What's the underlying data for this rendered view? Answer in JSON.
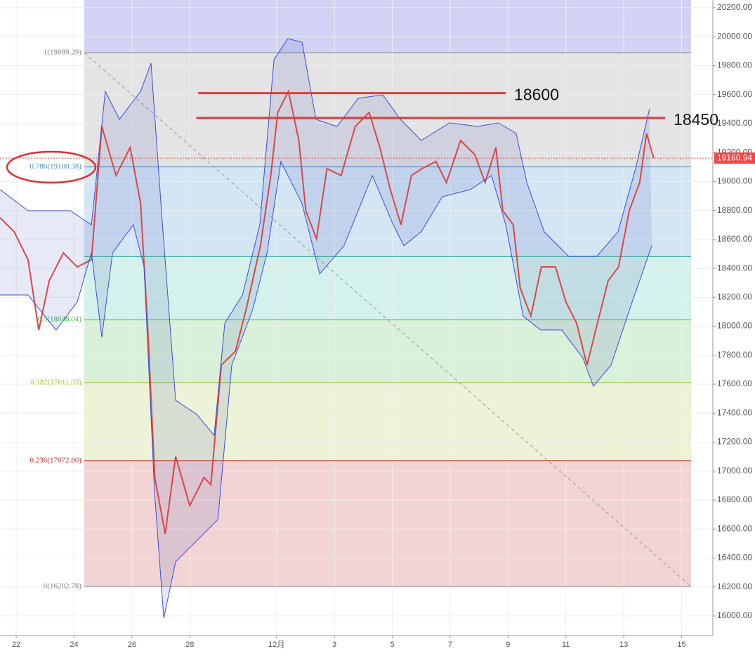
{
  "chart_data": {
    "type": "line",
    "xlim": [
      21.44,
      46.08
    ],
    "ylim": [
      15864,
      20253
    ],
    "xticks": [
      22,
      24,
      26,
      28,
      {
        "value": 31,
        "label": "12月"
      },
      {
        "value": 33,
        "label": "3"
      },
      {
        "value": 35,
        "label": "5"
      },
      {
        "value": 37,
        "label": "7"
      },
      {
        "value": 39,
        "label": "9"
      },
      {
        "value": 41,
        "label": "11"
      },
      {
        "value": 43,
        "label": "13"
      },
      {
        "value": 45,
        "label": "15"
      }
    ],
    "yticks": [
      {
        "value": 16000,
        "label": "16000.00"
      },
      {
        "value": 16200,
        "label": "16200.00"
      },
      {
        "value": 16400,
        "label": "16400.00"
      },
      {
        "value": 16600,
        "label": "16600.00"
      },
      {
        "value": 16800,
        "label": "16800.00"
      },
      {
        "value": 17000,
        "label": "17000.00"
      },
      {
        "value": 17200,
        "label": "17200.00"
      },
      {
        "value": 17400,
        "label": "17400.00"
      },
      {
        "value": 17600,
        "label": "17600.00"
      },
      {
        "value": 17800,
        "label": "17800.00"
      },
      {
        "value": 18000,
        "label": "18000.00"
      },
      {
        "value": 18200,
        "label": "18200.00"
      },
      {
        "value": 18400,
        "label": "18400.00"
      },
      {
        "value": 18600,
        "label": "18600.00"
      },
      {
        "value": 18800,
        "label": "18800.00"
      },
      {
        "value": 19000,
        "label": "19000.00"
      },
      {
        "value": 19200,
        "label": "19200.00"
      },
      {
        "value": 19400,
        "label": "19400.00"
      },
      {
        "value": 19600,
        "label": "19600.00"
      },
      {
        "value": 19800,
        "label": "19800.00"
      },
      {
        "value": 20000,
        "label": "20000.00"
      },
      {
        "value": 20200,
        "label": "20200.00"
      }
    ],
    "grid": true,
    "series": [
      {
        "color": "#d94848",
        "x": [
          21.44,
          21.93,
          22.41,
          22.78,
          23.14,
          23.63,
          24.11,
          24.6,
          24.96,
          25.45,
          25.94,
          26.3,
          26.55,
          26.79,
          27.15,
          27.51,
          28.0,
          28.49,
          28.73,
          29.09,
          29.58,
          29.95,
          30.44,
          30.8,
          31.04,
          31.41,
          31.77,
          32.01,
          32.38,
          32.74,
          33.23,
          33.72,
          34.2,
          34.57,
          34.93,
          35.3,
          35.66,
          36.03,
          36.51,
          36.87,
          37.36,
          37.85,
          38.21,
          38.58,
          38.82,
          39.18,
          39.42,
          39.79,
          40.15,
          40.64,
          41.0,
          41.37,
          41.73,
          42.09,
          42.46,
          42.82,
          43.19,
          43.55,
          43.79,
          44.03
        ],
        "values": [
          18750,
          18653,
          18459,
          17974,
          18314,
          18507,
          18410,
          18459,
          19380,
          19041,
          19235,
          18847,
          17974,
          16956,
          16568,
          17101,
          16762,
          16956,
          16907,
          17732,
          17828,
          18119,
          18556,
          19041,
          19477,
          19623,
          19283,
          18798,
          18604,
          19089,
          19041,
          19380,
          19477,
          19235,
          18944,
          18701,
          19041,
          19089,
          19138,
          18992,
          19283,
          19186,
          18992,
          19235,
          18798,
          18701,
          18265,
          18071,
          18410,
          18410,
          18168,
          18022,
          17732,
          18022,
          18314,
          18410,
          18798,
          18992,
          19332,
          19162
        ]
      },
      {
        "color": "#3b4fd8",
        "x": [
          21.44,
          22.41,
          22.9,
          23.87,
          24.6,
          25.08,
          25.57,
          26.3,
          26.66,
          27.02,
          27.51,
          28.24,
          28.84,
          29.21,
          29.82,
          30.42,
          30.91,
          31.39,
          31.88,
          32.36,
          33.09,
          33.82,
          34.67,
          35.28,
          36.0,
          36.98,
          37.95,
          38.67,
          39.28,
          39.65,
          40.25,
          41.1,
          42.07,
          42.8,
          43.41,
          43.89
        ],
        "values": [
          18944,
          18798,
          18798,
          18798,
          18701,
          19623,
          19429,
          19623,
          19817,
          18798,
          17489,
          17392,
          17247,
          18022,
          18216,
          18701,
          19841,
          19986,
          19962,
          19429,
          19380,
          19574,
          19598,
          19429,
          19283,
          19405,
          19380,
          19405,
          19332,
          18992,
          18653,
          18483,
          18483,
          18653,
          19089,
          19502
        ]
      },
      {
        "color": "#3b4fd8",
        "x": [
          21.44,
          22.41,
          23.38,
          24.11,
          24.6,
          24.96,
          25.33,
          26.05,
          26.42,
          26.78,
          27.1,
          27.51,
          28.24,
          28.97,
          29.45,
          30.18,
          30.67,
          31.15,
          31.88,
          32.49,
          33.33,
          34.31,
          35.03,
          35.4,
          36.0,
          36.73,
          37.7,
          38.43,
          38.92,
          39.52,
          40.13,
          40.86,
          41.59,
          41.95,
          42.56,
          43.29,
          43.97
        ],
        "values": [
          18216,
          18216,
          17974,
          18168,
          18507,
          17925,
          18507,
          18701,
          18410,
          16859,
          15985,
          16374,
          16519,
          16665,
          17732,
          18119,
          18507,
          19138,
          18847,
          18362,
          18556,
          19041,
          18701,
          18556,
          18653,
          18895,
          18944,
          19041,
          18701,
          18071,
          17974,
          17974,
          17780,
          17586,
          17732,
          18168,
          18556
        ]
      }
    ],
    "current_price": {
      "value": 19160.94,
      "color": "#f04848"
    },
    "fibonacci": {
      "x_start": 24.35,
      "x_end": 45.33,
      "top_fill": "#d2d3f4",
      "levels": [
        {
          "label": "1(19889.29)",
          "value": 19889.29,
          "color": "#888888",
          "fill": "#e4e4e4"
        },
        {
          "label": "0.786(19100.38)",
          "value": 19100.38,
          "color": "#4a8fc8",
          "fill": "#d4e6f4"
        },
        {
          "label": null,
          "value": 18481,
          "color": "#2aa58a",
          "fill": "#d4f2eb"
        },
        {
          "label": "0.5(18046.04)",
          "value": 18046.04,
          "color": "#4cb84c",
          "fill": "#d9f1d9"
        },
        {
          "label": "0.382(17611.03)",
          "value": 17611.03,
          "color": "#a8c83a",
          "fill": "#ecf3d6"
        },
        {
          "label": "0.236(17072.80)",
          "value": 17072.8,
          "color": "#c0392b",
          "fill": "#f3d4d4"
        },
        {
          "label": "0(16202.78)",
          "value": 16202.78,
          "color": "#888888"
        }
      ]
    },
    "annotations": [
      {
        "text": "18600",
        "y": 19610,
        "x": [
          28.29,
          38.92
        ],
        "color": "#e23a3a"
      },
      {
        "text": "18450",
        "y": 19439,
        "x": [
          28.22,
          44.43
        ],
        "color": "#e23a3a"
      }
    ]
  }
}
